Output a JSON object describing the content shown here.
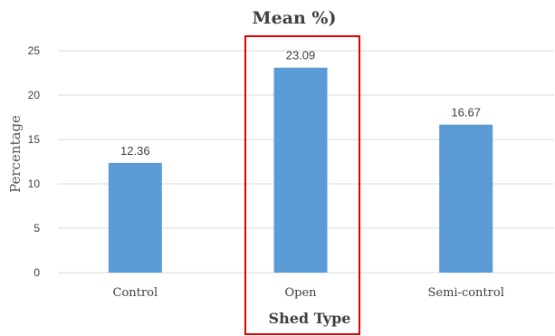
{
  "chart_data": {
    "type": "bar",
    "title": "Mean %)",
    "xlabel": "Shed Type",
    "ylabel": "Percentage",
    "categories": [
      "Control",
      "Open",
      "Semi-control"
    ],
    "values": [
      12.36,
      23.09,
      16.67
    ],
    "value_labels": [
      "12.36",
      "23.09",
      "16.67"
    ],
    "ylim": [
      0,
      25
    ],
    "yticks": [
      "0",
      "5",
      "10",
      "15",
      "20",
      "25"
    ],
    "grid": true,
    "legend": "none",
    "highlighted_category": "Open",
    "colors": {
      "bar": "#5b9bd5",
      "grid": "#d9d9d9",
      "highlight_box": "#e00000",
      "text": "#404040"
    }
  }
}
